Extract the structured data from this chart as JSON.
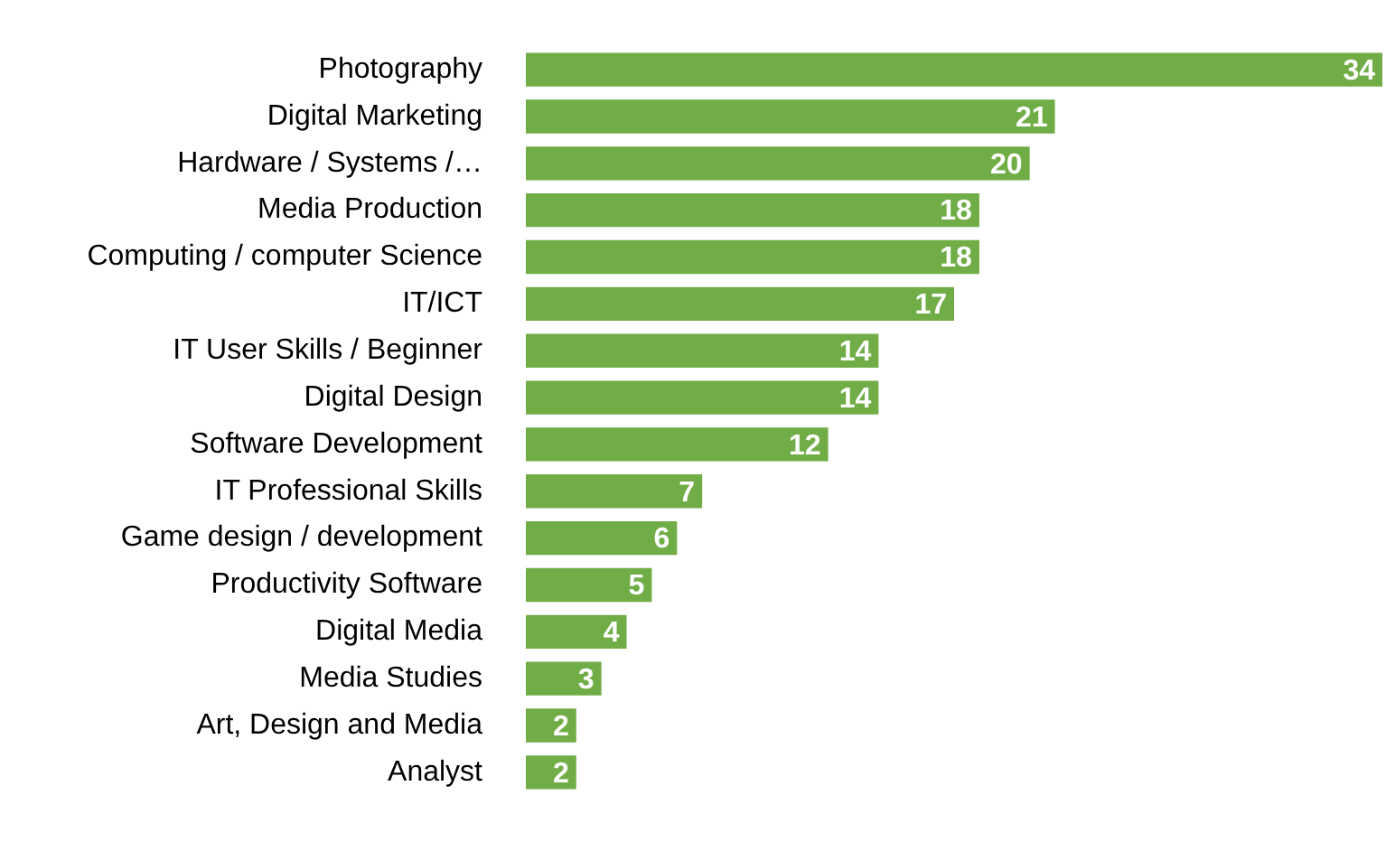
{
  "chart_data": {
    "type": "bar",
    "orientation": "horizontal",
    "categories": [
      "Photography",
      "Digital Marketing",
      "Hardware / Systems /…",
      "Media Production",
      "Computing / computer Science",
      "IT/ICT",
      "IT User Skills / Beginner",
      "Digital Design",
      "Software Development",
      "IT Professional Skills",
      "Game design / development",
      "Productivity Software",
      "Digital Media",
      "Media Studies",
      "Art, Design and Media",
      "Analyst"
    ],
    "values": [
      34,
      21,
      20,
      18,
      18,
      17,
      14,
      14,
      12,
      7,
      6,
      5,
      4,
      3,
      2,
      2
    ],
    "color": "#70ad47",
    "data_labels": true,
    "tick_labels": "y"
  }
}
